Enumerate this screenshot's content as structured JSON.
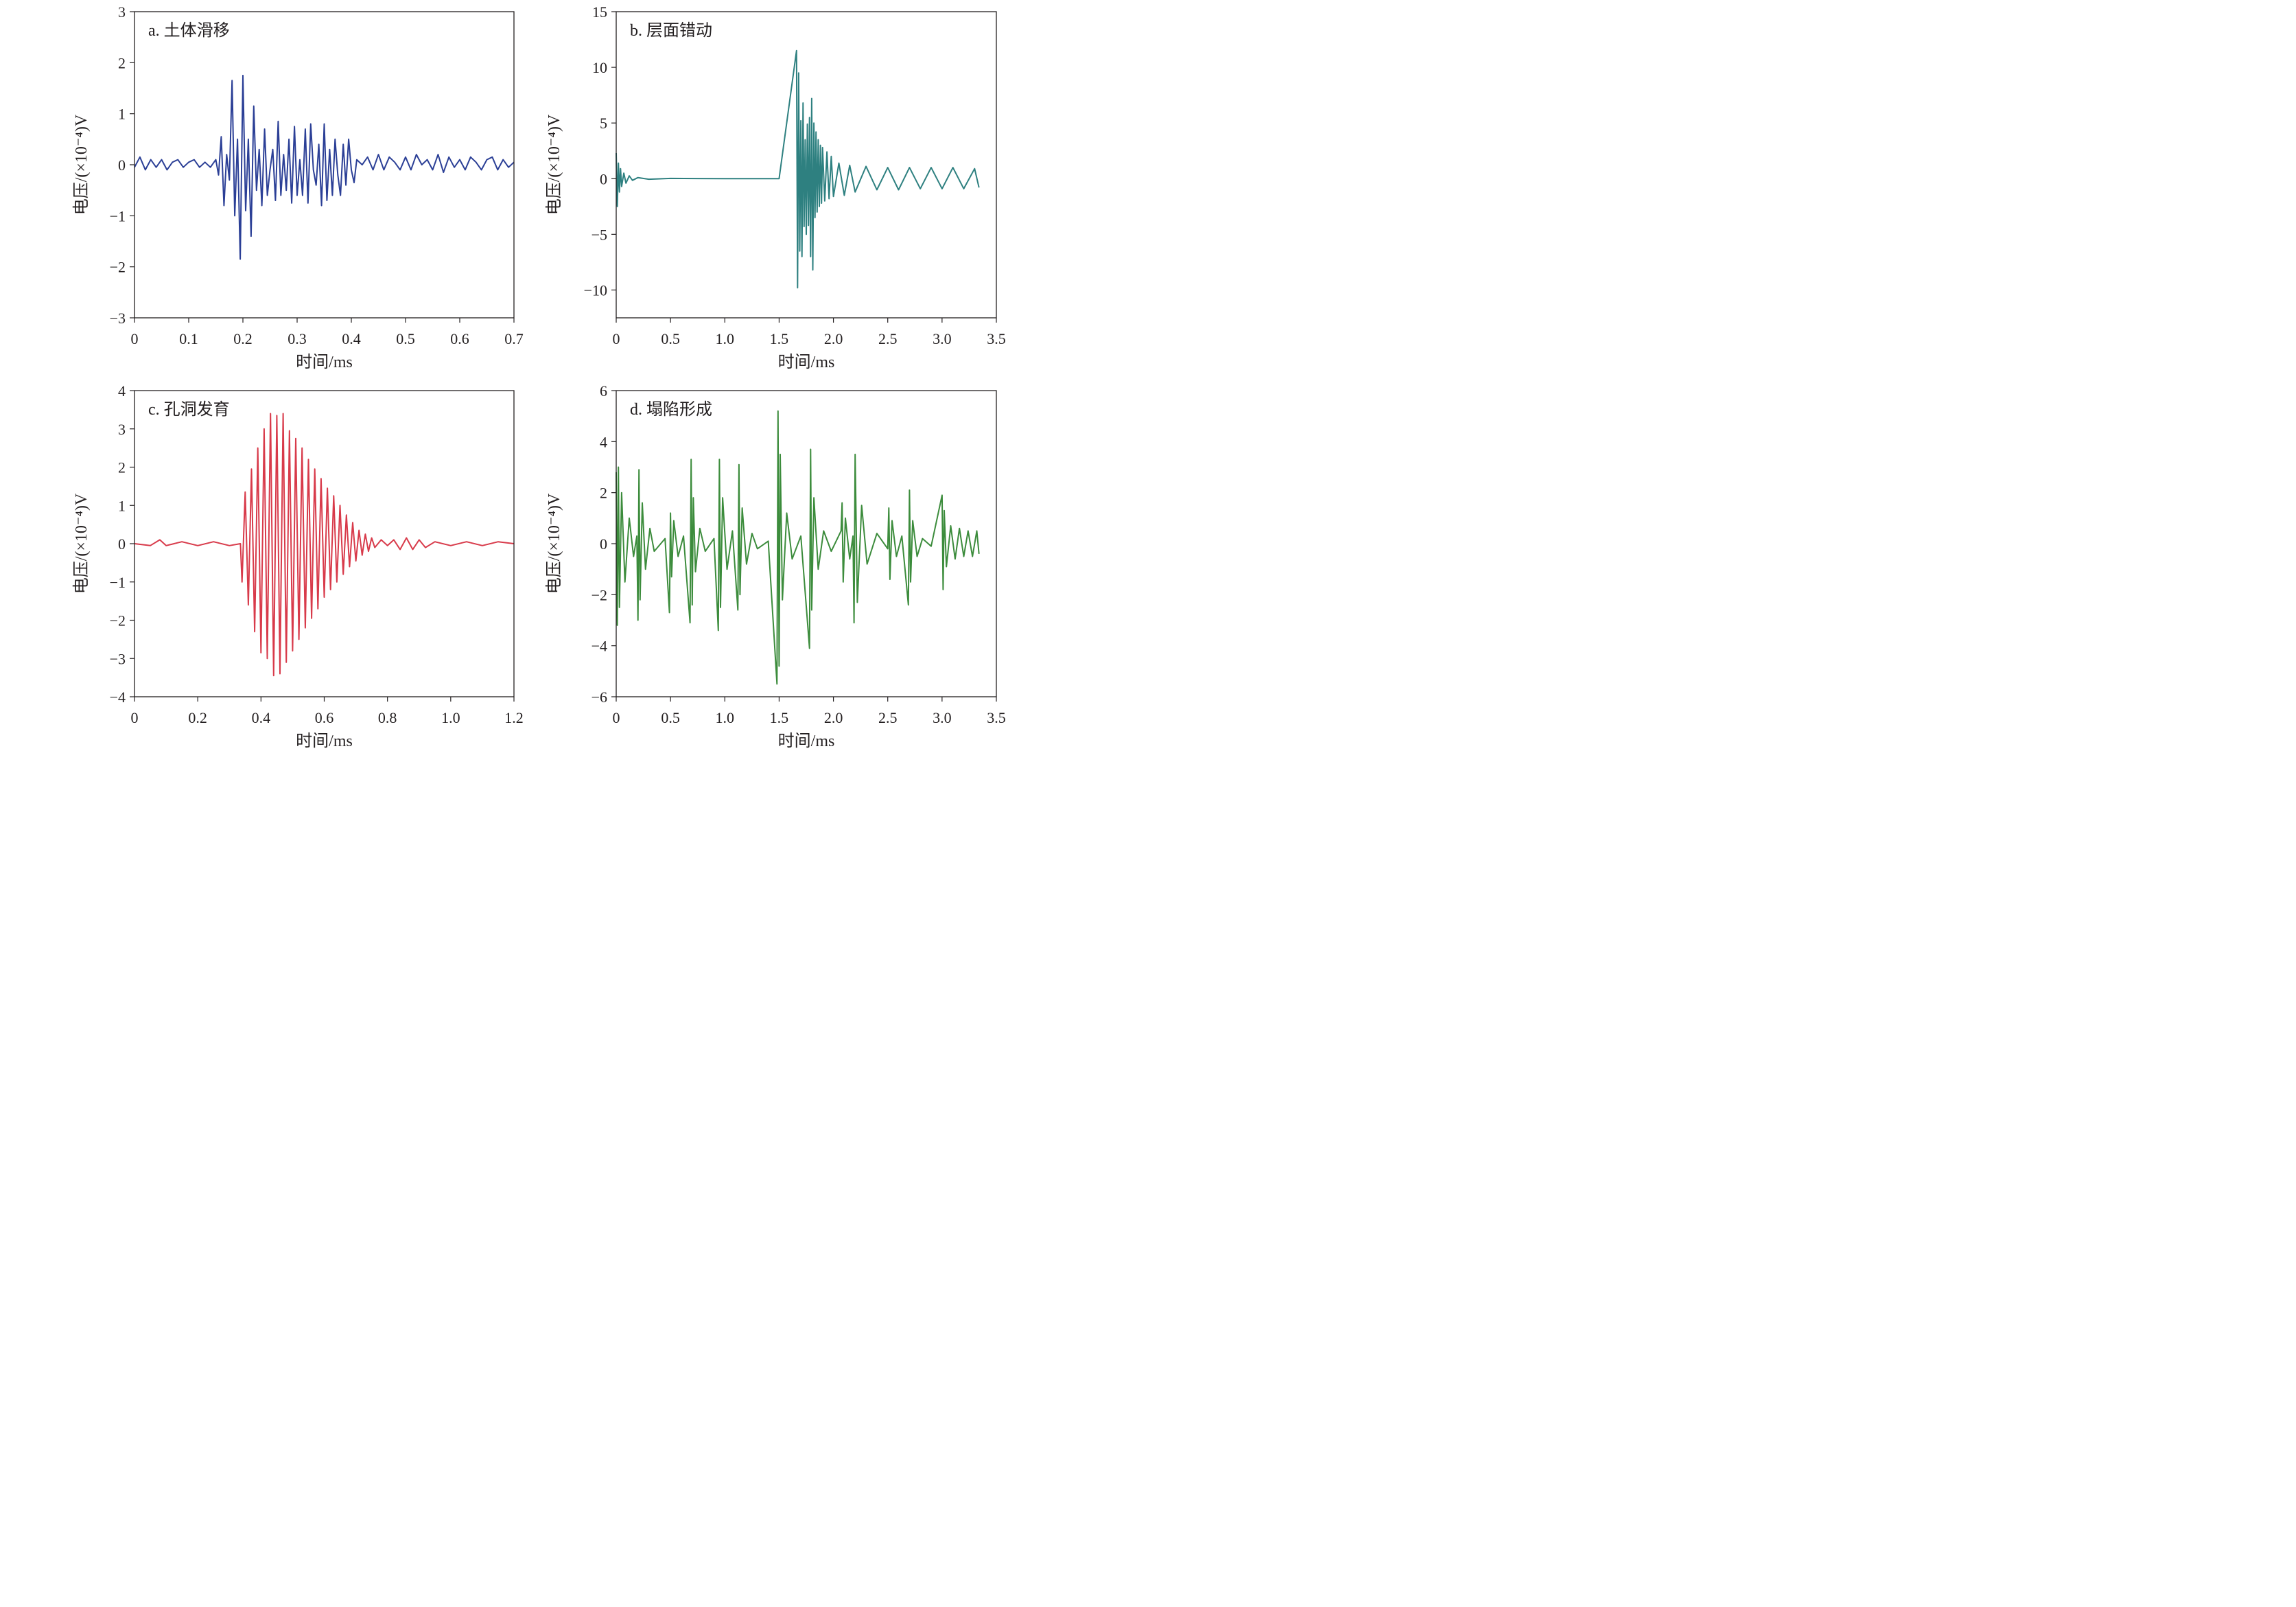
{
  "chart_data": [
    {
      "type": "line",
      "panel_label": "a. 土体滑移",
      "xlabel": "时间/ms",
      "ylabel": "电压/(×10⁻⁴)V",
      "xlim": [
        0,
        0.7
      ],
      "ylim": [
        -3,
        3
      ],
      "xticks": [
        0,
        0.1,
        0.2,
        0.3,
        0.4,
        0.5,
        0.6,
        0.7
      ],
      "xtick_labels": [
        "0",
        "0.1",
        "0.2",
        "0.3",
        "0.4",
        "0.5",
        "0.6",
        "0.7"
      ],
      "yticks": [
        -3,
        -2,
        -1,
        0,
        1,
        2,
        3
      ],
      "ytick_labels": [
        "−3",
        "−2",
        "−1",
        "0",
        "1",
        "2",
        "3"
      ],
      "color": "#2b3f96",
      "series": [
        {
          "x": [
            0,
            0.01,
            0.02,
            0.03,
            0.04,
            0.05,
            0.06,
            0.07,
            0.08,
            0.09,
            0.1,
            0.11,
            0.12,
            0.13,
            0.14,
            0.15,
            0.155,
            0.16,
            0.165,
            0.17,
            0.175,
            0.18,
            0.185,
            0.19,
            0.195,
            0.2,
            0.205,
            0.21,
            0.215,
            0.22,
            0.225,
            0.23,
            0.235,
            0.24,
            0.245,
            0.25,
            0.255,
            0.26,
            0.265,
            0.27,
            0.275,
            0.28,
            0.285,
            0.29,
            0.295,
            0.3,
            0.305,
            0.31,
            0.315,
            0.32,
            0.325,
            0.33,
            0.335,
            0.34,
            0.345,
            0.35,
            0.355,
            0.36,
            0.365,
            0.37,
            0.375,
            0.38,
            0.385,
            0.39,
            0.395,
            0.4,
            0.405,
            0.41,
            0.42,
            0.43,
            0.44,
            0.45,
            0.46,
            0.47,
            0.48,
            0.49,
            0.5,
            0.51,
            0.52,
            0.53,
            0.54,
            0.55,
            0.56,
            0.57,
            0.58,
            0.59,
            0.6,
            0.61,
            0.62,
            0.63,
            0.64,
            0.65,
            0.66,
            0.67,
            0.68,
            0.69,
            0.7
          ],
          "y": [
            -0.05,
            0.15,
            -0.1,
            0.1,
            -0.05,
            0.1,
            -0.1,
            0.05,
            0.1,
            -0.05,
            0.05,
            0.1,
            -0.05,
            0.05,
            -0.05,
            0.1,
            -0.2,
            0.55,
            -0.8,
            0.2,
            -0.3,
            1.65,
            -1.0,
            0.5,
            -1.85,
            1.75,
            -0.9,
            0.5,
            -1.4,
            1.15,
            -0.5,
            0.3,
            -0.8,
            0.7,
            -0.6,
            -0.1,
            0.3,
            -0.7,
            0.85,
            -0.6,
            0.2,
            -0.5,
            0.5,
            -0.75,
            0.75,
            -0.6,
            0.1,
            -0.6,
            0.7,
            -0.75,
            0.8,
            -0.1,
            -0.4,
            0.4,
            -0.8,
            0.8,
            -0.7,
            0.3,
            -0.6,
            0.5,
            -0.2,
            -0.6,
            0.4,
            -0.4,
            0.5,
            -0.1,
            -0.35,
            0.1,
            0.0,
            0.15,
            -0.1,
            0.2,
            -0.1,
            0.15,
            0.05,
            -0.1,
            0.15,
            -0.1,
            0.2,
            0.0,
            0.1,
            -0.1,
            0.2,
            -0.15,
            0.15,
            -0.05,
            0.1,
            -0.1,
            0.15,
            0.05,
            -0.1,
            0.1,
            0.15,
            -0.1,
            0.1,
            -0.05,
            0.05
          ]
        }
      ]
    },
    {
      "type": "line",
      "panel_label": "b. 层面错动",
      "xlabel": "时间/ms",
      "ylabel": "电压/(×10⁻⁴)V",
      "xlim": [
        0,
        3.5
      ],
      "ylim": [
        -12.5,
        15
      ],
      "xticks": [
        0,
        0.5,
        1.0,
        1.5,
        2.0,
        2.5,
        3.0,
        3.5
      ],
      "xtick_labels": [
        "0",
        "0.5",
        "1.0",
        "1.5",
        "2.0",
        "2.5",
        "3.0",
        "3.5"
      ],
      "yticks": [
        -10,
        -5,
        0,
        5,
        10,
        15
      ],
      "ytick_labels": [
        "−10",
        "−5",
        "0",
        "5",
        "10",
        "15"
      ],
      "color": "#2e8080",
      "series": [
        {
          "x": [
            0,
            0.01,
            0.02,
            0.03,
            0.04,
            0.05,
            0.07,
            0.09,
            0.12,
            0.15,
            0.2,
            0.3,
            0.5,
            1.0,
            1.5,
            1.66,
            1.67,
            1.68,
            1.69,
            1.7,
            1.71,
            1.72,
            1.73,
            1.74,
            1.75,
            1.76,
            1.77,
            1.78,
            1.79,
            1.8,
            1.81,
            1.82,
            1.83,
            1.84,
            1.85,
            1.86,
            1.87,
            1.88,
            1.89,
            1.9,
            1.92,
            1.94,
            1.96,
            1.98,
            2.0,
            2.05,
            2.1,
            2.15,
            2.2,
            2.3,
            2.4,
            2.5,
            2.6,
            2.7,
            2.8,
            2.9,
            3.0,
            3.1,
            3.2,
            3.3,
            3.34
          ],
          "y": [
            2.3,
            -2.5,
            1.4,
            -1.2,
            0.9,
            -0.7,
            0.5,
            -0.4,
            0.25,
            -0.15,
            0.1,
            -0.05,
            0.02,
            0.0,
            0.0,
            11.5,
            -9.8,
            9.5,
            -6.5,
            5.2,
            -7.0,
            6.8,
            -4.3,
            3.5,
            -5.0,
            4.9,
            -4.2,
            5.5,
            -7.0,
            7.2,
            -8.2,
            5.0,
            -3.5,
            4.2,
            -3.0,
            3.5,
            -2.5,
            3.0,
            -2.2,
            2.8,
            -2.0,
            2.4,
            -1.8,
            2.0,
            -1.6,
            1.4,
            -1.5,
            1.2,
            -1.2,
            1.1,
            -1.0,
            1.0,
            -1.0,
            1.0,
            -0.9,
            1.0,
            -0.9,
            1.0,
            -0.9,
            0.9,
            -0.8
          ]
        }
      ]
    },
    {
      "type": "line",
      "panel_label": "c. 孔洞发育",
      "xlabel": "时间/ms",
      "ylabel": "电压/(×10⁻⁴)V",
      "xlim": [
        0,
        1.2
      ],
      "ylim": [
        -4,
        4
      ],
      "xticks": [
        0,
        0.2,
        0.4,
        0.6,
        0.8,
        1.0,
        1.2
      ],
      "xtick_labels": [
        "0",
        "0.2",
        "0.4",
        "0.6",
        "0.8",
        "1.0",
        "1.2"
      ],
      "yticks": [
        -4,
        -3,
        -2,
        -1,
        0,
        1,
        2,
        3,
        4
      ],
      "ytick_labels": [
        "−4",
        "−3",
        "−2",
        "−1",
        "0",
        "1",
        "2",
        "3",
        "4"
      ],
      "color": "#d83a4a",
      "series": [
        {
          "x": [
            0,
            0.05,
            0.08,
            0.1,
            0.15,
            0.2,
            0.25,
            0.3,
            0.335,
            0.34,
            0.35,
            0.36,
            0.37,
            0.38,
            0.39,
            0.4,
            0.41,
            0.42,
            0.43,
            0.44,
            0.45,
            0.46,
            0.47,
            0.48,
            0.49,
            0.5,
            0.51,
            0.52,
            0.53,
            0.54,
            0.55,
            0.56,
            0.57,
            0.58,
            0.59,
            0.6,
            0.61,
            0.62,
            0.63,
            0.64,
            0.65,
            0.66,
            0.67,
            0.68,
            0.69,
            0.7,
            0.71,
            0.72,
            0.73,
            0.74,
            0.75,
            0.76,
            0.78,
            0.8,
            0.82,
            0.84,
            0.86,
            0.88,
            0.9,
            0.92,
            0.95,
            1.0,
            1.05,
            1.1,
            1.15,
            1.2
          ],
          "y": [
            0.0,
            -0.05,
            0.1,
            -0.05,
            0.05,
            -0.05,
            0.05,
            -0.05,
            0.0,
            -1.0,
            1.35,
            -1.6,
            1.95,
            -2.3,
            2.5,
            -2.85,
            3.0,
            -3.0,
            3.4,
            -3.45,
            3.35,
            -3.4,
            3.4,
            -3.1,
            2.95,
            -2.8,
            2.75,
            -2.5,
            2.5,
            -2.2,
            2.2,
            -1.95,
            1.95,
            -1.7,
            1.7,
            -1.4,
            1.45,
            -1.2,
            1.25,
            -1.0,
            1.0,
            -0.8,
            0.75,
            -0.6,
            0.55,
            -0.45,
            0.35,
            -0.3,
            0.25,
            -0.2,
            0.15,
            -0.1,
            0.1,
            -0.05,
            0.1,
            -0.15,
            0.15,
            -0.15,
            0.1,
            -0.1,
            0.05,
            -0.05,
            0.05,
            -0.05,
            0.05,
            0.0
          ]
        }
      ]
    },
    {
      "type": "line",
      "panel_label": "d. 塌陷形成",
      "xlabel": "时间/ms",
      "ylabel": "电压/(×10⁻⁴)V",
      "xlim": [
        0,
        3.5
      ],
      "ylim": [
        -6,
        6
      ],
      "xticks": [
        0,
        0.5,
        1.0,
        1.5,
        2.0,
        2.5,
        3.0,
        3.5
      ],
      "xtick_labels": [
        "0",
        "0.5",
        "1.0",
        "1.5",
        "2.0",
        "2.5",
        "3.0",
        "3.5"
      ],
      "yticks": [
        -6,
        -4,
        -2,
        0,
        2,
        4,
        6
      ],
      "ytick_labels": [
        "−6",
        "−4",
        "−2",
        "0",
        "2",
        "4",
        "6"
      ],
      "color": "#3c8c3c",
      "series": [
        {
          "x": [
            0.0,
            0.01,
            0.02,
            0.03,
            0.05,
            0.08,
            0.12,
            0.16,
            0.19,
            0.2,
            0.21,
            0.22,
            0.24,
            0.27,
            0.31,
            0.35,
            0.45,
            0.49,
            0.5,
            0.51,
            0.53,
            0.57,
            0.62,
            0.68,
            0.69,
            0.7,
            0.71,
            0.73,
            0.77,
            0.82,
            0.9,
            0.94,
            0.95,
            0.96,
            0.98,
            1.02,
            1.07,
            1.12,
            1.13,
            1.14,
            1.16,
            1.2,
            1.25,
            1.3,
            1.4,
            1.48,
            1.49,
            1.5,
            1.51,
            1.53,
            1.57,
            1.62,
            1.7,
            1.78,
            1.79,
            1.8,
            1.82,
            1.86,
            1.91,
            1.98,
            2.07,
            2.08,
            2.09,
            2.11,
            2.15,
            2.18,
            2.19,
            2.2,
            2.22,
            2.26,
            2.31,
            2.4,
            2.5,
            2.51,
            2.52,
            2.54,
            2.58,
            2.63,
            2.69,
            2.7,
            2.71,
            2.73,
            2.77,
            2.82,
            2.9,
            3.0,
            3.01,
            3.02,
            3.04,
            3.08,
            3.12,
            3.16,
            3.2,
            3.24,
            3.28,
            3.32,
            3.34
          ],
          "y": [
            2.8,
            -3.2,
            3.0,
            -2.5,
            2.0,
            -1.5,
            1.0,
            -0.5,
            0.3,
            -3.0,
            2.9,
            -2.2,
            1.6,
            -1.0,
            0.6,
            -0.3,
            0.2,
            -2.7,
            1.2,
            -1.3,
            0.9,
            -0.5,
            0.3,
            -3.1,
            3.3,
            -2.4,
            1.8,
            -1.1,
            0.6,
            -0.3,
            0.2,
            -3.4,
            3.3,
            -2.5,
            1.8,
            -1.0,
            0.5,
            -2.6,
            3.1,
            -2.0,
            1.4,
            -0.8,
            0.4,
            -0.2,
            0.1,
            -5.5,
            5.2,
            -4.8,
            3.5,
            -2.2,
            1.2,
            -0.6,
            0.3,
            -4.1,
            3.7,
            -2.6,
            1.8,
            -1.0,
            0.5,
            -0.3,
            0.5,
            1.6,
            -1.5,
            1.0,
            -0.6,
            0.3,
            -3.1,
            3.5,
            -2.3,
            1.5,
            -0.8,
            0.4,
            -0.2,
            1.4,
            -1.4,
            0.9,
            -0.5,
            0.3,
            -2.4,
            2.1,
            -1.5,
            0.9,
            -0.5,
            0.2,
            -0.1,
            1.9,
            -1.8,
            1.3,
            -0.9,
            0.7,
            -0.6,
            0.6,
            -0.5,
            0.5,
            -0.5,
            0.5,
            -0.4
          ]
        }
      ]
    }
  ]
}
